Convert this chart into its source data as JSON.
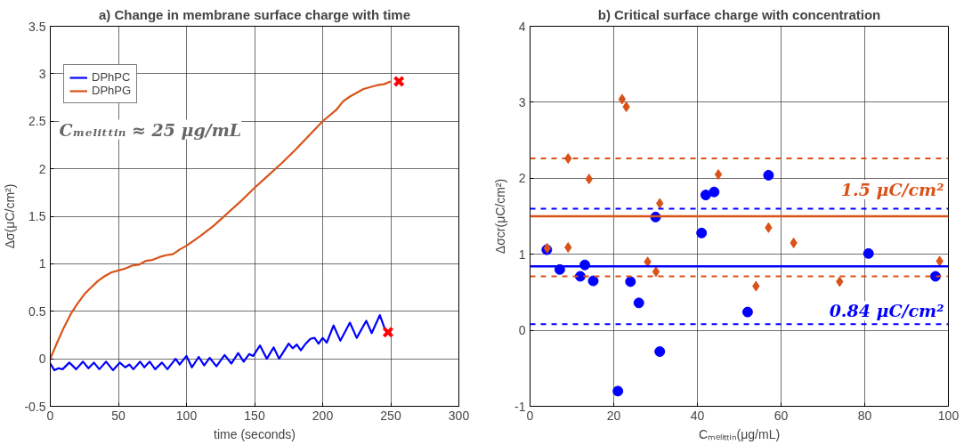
{
  "chart_data": [
    {
      "type": "line",
      "title": "a) Change in membrane surface charge with time",
      "xlabel": "time (seconds)",
      "ylabel": "Δσ(μC/cm²)",
      "xlim": [
        0,
        300
      ],
      "ylim": [
        -0.5,
        3.5
      ],
      "xticks": [
        0,
        50,
        100,
        150,
        200,
        250,
        300
      ],
      "yticks": [
        -0.5,
        0,
        0.5,
        1,
        1.5,
        2,
        2.5,
        3,
        3.5
      ],
      "grid": true,
      "legend": "top left",
      "annotations": [
        "Cₘₑₗᵢₜₜᵢₙ ≈ 25 μg/mL"
      ],
      "series": [
        {
          "name": "DPhPC",
          "color": "#0000ff",
          "x": [
            0,
            3,
            6,
            9,
            14,
            19,
            24,
            28,
            32,
            36,
            41,
            46,
            51,
            55,
            58,
            61,
            66,
            69,
            73,
            77,
            82,
            86,
            92,
            95,
            100,
            104,
            109,
            113,
            117,
            122,
            128,
            133,
            138,
            142,
            146,
            149,
            154,
            159,
            164,
            168,
            175,
            178,
            181,
            184,
            187,
            191,
            194,
            197,
            200,
            203,
            208,
            213,
            220,
            225,
            232,
            236,
            242,
            246
          ],
          "values": [
            -0.05,
            -0.12,
            -0.1,
            -0.11,
            -0.04,
            -0.11,
            -0.03,
            -0.1,
            -0.04,
            -0.11,
            -0.03,
            -0.12,
            -0.04,
            -0.09,
            -0.06,
            -0.11,
            -0.03,
            -0.09,
            -0.03,
            -0.11,
            -0.04,
            -0.11,
            0.0,
            -0.06,
            0.03,
            -0.09,
            0.02,
            -0.07,
            0.01,
            -0.08,
            0.04,
            -0.05,
            0.06,
            -0.03,
            0.05,
            0.03,
            0.14,
            0.0,
            0.12,
            0.0,
            0.16,
            0.11,
            0.15,
            0.09,
            0.15,
            0.21,
            0.22,
            0.16,
            0.22,
            0.17,
            0.35,
            0.19,
            0.38,
            0.22,
            0.4,
            0.27,
            0.46,
            0.3
          ]
        },
        {
          "name": "DPhPG",
          "color": "#d95319",
          "x": [
            0,
            5,
            10,
            15,
            20,
            25,
            30,
            35,
            40,
            45,
            50,
            55,
            60,
            65,
            70,
            75,
            80,
            85,
            90,
            95,
            100,
            110,
            120,
            130,
            140,
            150,
            160,
            170,
            180,
            190,
            200,
            210,
            215,
            220,
            230,
            240,
            245,
            250
          ],
          "values": [
            0,
            0.17,
            0.33,
            0.47,
            0.58,
            0.68,
            0.75,
            0.82,
            0.87,
            0.91,
            0.93,
            0.95,
            0.98,
            0.99,
            1.03,
            1.04,
            1.07,
            1.09,
            1.1,
            1.15,
            1.19,
            1.29,
            1.4,
            1.53,
            1.66,
            1.8,
            1.93,
            2.06,
            2.2,
            2.35,
            2.5,
            2.62,
            2.71,
            2.76,
            2.84,
            2.88,
            2.89,
            2.92
          ]
        },
        {
          "type": "scatter",
          "marker": "cross",
          "color": "#ff0000",
          "x": [
            256,
            248
          ],
          "values": [
            2.92,
            0.28
          ]
        }
      ]
    },
    {
      "type": "scatter",
      "title": "b) Critical surface charge with concentration",
      "xlabel": "Cₘₑₗᵢₜₜᵢₙ(μg/mL)",
      "ylabel": "Δσcr(μC/cm²)",
      "xlim": [
        0,
        100
      ],
      "ylim": [
        -1,
        4
      ],
      "xticks": [
        0,
        20,
        40,
        60,
        80,
        100
      ],
      "yticks": [
        -1,
        0,
        1,
        2,
        3,
        4
      ],
      "grid": true,
      "series": [
        {
          "color": "#0000ff",
          "marker": "circle",
          "x": [
            4,
            7.1,
            12,
            13.1,
            15.1,
            21,
            24,
            26,
            30,
            31,
            41,
            42,
            44,
            52,
            57,
            80.9,
            96.9
          ],
          "values": [
            1.06,
            0.8,
            0.71,
            0.86,
            0.65,
            -0.8,
            0.64,
            0.36,
            1.49,
            -0.28,
            1.28,
            1.78,
            1.82,
            0.24,
            2.04,
            1.01,
            0.71
          ]
        },
        {
          "color": "#d95319",
          "marker": "diamond",
          "x": [
            4.1,
            9.1,
            9.1,
            14.1,
            22,
            23,
            28.1,
            30.1,
            31,
            45,
            54,
            57,
            63,
            74,
            97.9
          ],
          "values": [
            1.08,
            1.09,
            2.26,
            1.99,
            3.04,
            2.94,
            0.9,
            0.77,
            1.67,
            2.05,
            0.58,
            1.35,
            1.15,
            0.64,
            0.91
          ]
        }
      ],
      "ref_lines": [
        {
          "axis": "y",
          "value": 1.5,
          "label": "1.5 μC/cm²",
          "color": "#d95319",
          "line_style": "solid"
        },
        {
          "axis": "y",
          "value": 0.84,
          "label": "0.84 μC/cm²",
          "color": "#0000ff",
          "line_style": "solid"
        },
        {
          "axis": "y",
          "value": 2.26,
          "color": "#d95319",
          "line_style": "dashed"
        },
        {
          "axis": "y",
          "value": 0.71,
          "color": "#d95319",
          "line_style": "dashed"
        },
        {
          "axis": "y",
          "value": 1.6,
          "color": "#0000ff",
          "line_style": "dashed"
        },
        {
          "axis": "y",
          "value": 0.08,
          "color": "#0000ff",
          "line_style": "dashed"
        }
      ]
    }
  ]
}
